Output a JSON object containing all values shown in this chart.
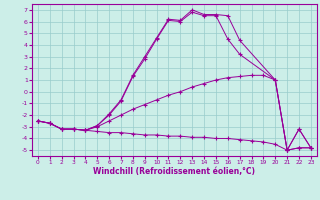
{
  "xlabel": "Windchill (Refroidissement éolien,°C)",
  "xlim": [
    -0.5,
    23.5
  ],
  "ylim": [
    -5.5,
    7.5
  ],
  "xticks": [
    0,
    1,
    2,
    3,
    4,
    5,
    6,
    7,
    8,
    9,
    10,
    11,
    12,
    13,
    14,
    15,
    16,
    17,
    18,
    19,
    20,
    21,
    22,
    23
  ],
  "yticks": [
    -5,
    -4,
    -3,
    -2,
    -1,
    0,
    1,
    2,
    3,
    4,
    5,
    6,
    7
  ],
  "bg_color": "#cceee8",
  "line_color": "#990099",
  "grid_color": "#99cccc",
  "lines": [
    {
      "x": [
        0,
        1,
        2,
        3,
        4,
        5,
        6,
        7,
        8,
        9,
        10,
        11,
        12,
        13,
        14,
        15,
        16,
        17,
        18,
        19,
        20,
        21,
        22,
        23
      ],
      "y": [
        -2.5,
        -2.7,
        -3.2,
        -3.2,
        -3.3,
        -3.4,
        -3.5,
        -3.5,
        -3.6,
        -3.7,
        -3.7,
        -3.8,
        -3.8,
        -3.9,
        -3.9,
        -4.0,
        -4.0,
        -4.1,
        -4.2,
        -4.3,
        -4.5,
        -5.0,
        -4.8,
        -4.8
      ]
    },
    {
      "x": [
        0,
        1,
        2,
        3,
        4,
        5,
        6,
        7,
        8,
        9,
        10,
        11,
        12,
        13,
        14,
        15,
        16,
        17,
        18,
        19,
        20,
        21,
        22,
        23
      ],
      "y": [
        -2.5,
        -2.7,
        -3.2,
        -3.2,
        -3.3,
        -3.0,
        -2.5,
        -2.0,
        -1.5,
        -1.1,
        -0.7,
        -0.3,
        0.0,
        0.4,
        0.7,
        1.0,
        1.2,
        1.3,
        1.4,
        1.4,
        1.0,
        -5.0,
        -4.8,
        -4.8
      ]
    },
    {
      "x": [
        0,
        1,
        2,
        3,
        4,
        5,
        6,
        7,
        8,
        9,
        10,
        11,
        12,
        13,
        14,
        15,
        16,
        17,
        20,
        21,
        22,
        23
      ],
      "y": [
        -2.5,
        -2.7,
        -3.2,
        -3.2,
        -3.3,
        -2.9,
        -2.0,
        -0.8,
        1.3,
        2.8,
        4.5,
        6.1,
        6.0,
        6.8,
        6.5,
        6.5,
        4.5,
        3.2,
        1.0,
        -5.0,
        -3.2,
        -4.8
      ]
    },
    {
      "x": [
        0,
        1,
        2,
        3,
        4,
        5,
        6,
        7,
        8,
        9,
        10,
        11,
        12,
        13,
        14,
        15,
        16,
        17,
        20,
        21,
        22,
        23
      ],
      "y": [
        -2.5,
        -2.7,
        -3.2,
        -3.2,
        -3.3,
        -2.9,
        -1.9,
        -0.7,
        1.4,
        3.0,
        4.6,
        6.2,
        6.1,
        7.0,
        6.6,
        6.6,
        6.5,
        4.4,
        1.0,
        -5.0,
        -3.2,
        -4.8
      ]
    }
  ]
}
